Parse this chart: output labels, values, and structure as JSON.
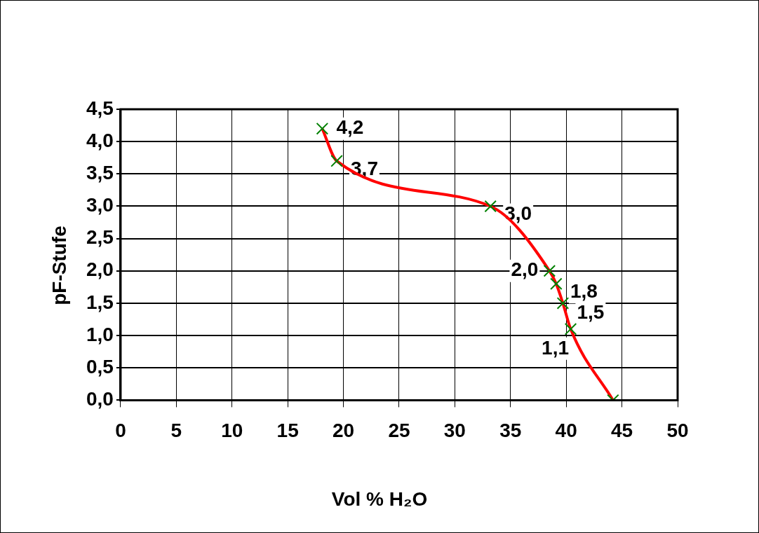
{
  "chart_data": {
    "type": "line",
    "xlabel": "Vol % H₂O",
    "ylabel": "pF-Stufe",
    "x": [
      18.1,
      19.4,
      33.2,
      38.5,
      39.1,
      39.7,
      40.4,
      44.2
    ],
    "series": [
      {
        "type": "line",
        "color": "#ff0000",
        "marker": "none",
        "values": [
          4.2,
          3.7,
          3.0,
          2.0,
          1.8,
          1.5,
          1.1,
          0
        ]
      },
      {
        "type": "scatter",
        "color": "#008000",
        "marker": "cross",
        "values": [
          4.2,
          3.7,
          3.0,
          2.0,
          1.8,
          1.5,
          1.1,
          0
        ],
        "value_labels": [
          "4,2",
          "3,7",
          "3,0",
          "2,0",
          "1,8",
          "1,5",
          "1,1",
          null
        ]
      }
    ],
    "xlim": [
      0,
      50
    ],
    "xticks": [
      0,
      5,
      10,
      15,
      20,
      25,
      30,
      35,
      40,
      45,
      50
    ],
    "ylim": [
      0,
      4.5
    ],
    "yticks": [
      {
        "value": 0,
        "label": "0,0"
      },
      {
        "value": 0.5,
        "label": "0,5"
      },
      {
        "value": 1,
        "label": "1,0"
      },
      {
        "value": 1.5,
        "label": "1,5"
      },
      {
        "value": 2,
        "label": "2,0"
      },
      {
        "value": 2.5,
        "label": "2,5"
      },
      {
        "value": 3,
        "label": "3,0"
      },
      {
        "value": 3.5,
        "label": "3,5"
      },
      {
        "value": 4,
        "label": "4,0"
      },
      {
        "value": 4.5,
        "label": "4,5"
      }
    ],
    "grid": true,
    "legend": false
  }
}
